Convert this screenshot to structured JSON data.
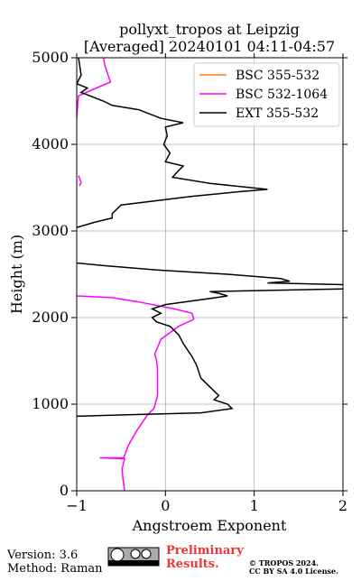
{
  "chart_data": {
    "type": "line",
    "title": "pollyxt_tropos at Leipzig",
    "subtitle": "[Averaged] 20240101 04:11-04:57",
    "x_label": "Angstroem Exponent",
    "y_label": "Height (m)",
    "xlim": [
      -1,
      2
    ],
    "ylim": [
      0,
      5000
    ],
    "xticks": [
      {
        "value": -1,
        "label": "−1"
      },
      0,
      1,
      2
    ],
    "yticks": [
      0,
      1000,
      2000,
      3000,
      4000,
      5000
    ],
    "grid": true,
    "legend": "upper right",
    "series": [
      {
        "name": "BSC 355-532",
        "color": "#ff7f0e",
        "x": [],
        "y": []
      },
      {
        "name": "BSC 532-1064",
        "color": "#ff00ff",
        "x": [
          -0.7,
          -0.68,
          -0.62,
          -0.85,
          -0.98,
          -0.99,
          -1.0,
          null,
          -0.98,
          -0.95,
          -0.97,
          null,
          -1.0,
          -0.6,
          -0.3,
          0.1,
          0.3,
          0.32,
          0.15,
          -0.05,
          -0.12,
          -0.1,
          -0.09,
          -0.09,
          -0.13,
          -0.2,
          -0.32,
          -0.42,
          -0.47,
          -0.74,
          -0.46,
          -0.49,
          -0.48,
          -0.46
        ],
        "y": [
          5000,
          4900,
          4720,
          4620,
          4560,
          4450,
          4300,
          null,
          3640,
          3560,
          3520,
          null,
          2250,
          2230,
          2180,
          2100,
          2050,
          1980,
          1900,
          1750,
          1580,
          1500,
          1400,
          1100,
          950,
          880,
          700,
          520,
          380,
          380,
          370,
          250,
          150,
          0
        ]
      },
      {
        "name": "EXT 355-532",
        "color": "#000000",
        "x": [
          -0.98,
          -0.95,
          -1.0,
          -0.88,
          -0.95,
          -0.7,
          -0.6,
          -0.3,
          -0.05,
          0.2,
          0.0,
          0.02,
          -0.02,
          0.05,
          0.0,
          0.2,
          0.15,
          0.08,
          0.5,
          1.15,
          0.8,
          0.3,
          -0.5,
          -0.6,
          -0.6,
          -0.8,
          -1.0,
          null,
          -1.0,
          -0.7,
          -0.1,
          0.7,
          1.3,
          1.4,
          1.15,
          2.0,
          null,
          2.0,
          0.5,
          0.6,
          0.7,
          0.5,
          0.0,
          -0.15,
          -0.05,
          -0.15,
          -0.1,
          0.05,
          0.15,
          0.2,
          0.3,
          0.35,
          0.4,
          0.5,
          0.6,
          0.55,
          0.7,
          0.75,
          0.4,
          -0.7,
          -1.0
        ],
        "y": [
          5000,
          4800,
          4700,
          4650,
          4600,
          4500,
          4450,
          4400,
          4300,
          4250,
          4200,
          4100,
          4000,
          3900,
          3800,
          3750,
          3700,
          3620,
          3550,
          3480,
          3450,
          3400,
          3300,
          3200,
          3150,
          3100,
          3040,
          null,
          2630,
          2600,
          2550,
          2500,
          2450,
          2420,
          2400,
          2380,
          null,
          2330,
          2300,
          2280,
          2250,
          2220,
          2150,
          2100,
          2050,
          2000,
          1950,
          1900,
          1800,
          1700,
          1550,
          1450,
          1300,
          1200,
          1100,
          1050,
          1000,
          950,
          900,
          870,
          860
        ]
      }
    ]
  },
  "footer": {
    "version": "Version: 3.6",
    "method": "Method: Raman",
    "preliminary": [
      "Preliminary",
      "Results."
    ],
    "copyright": [
      "© TROPOS 2024.",
      "CC BY SA 4.0 License."
    ]
  }
}
